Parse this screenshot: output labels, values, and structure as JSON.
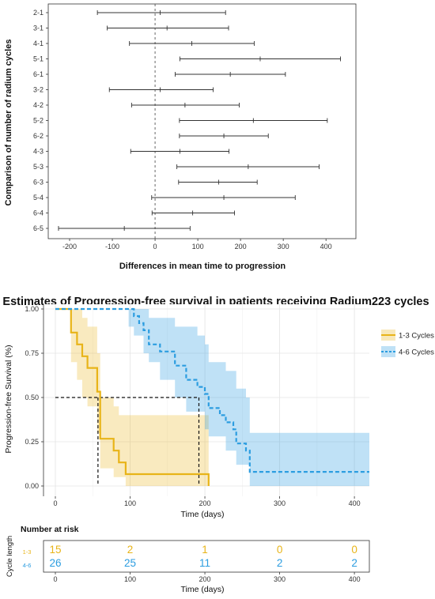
{
  "chart_data": [
    {
      "type": "error-bar",
      "title": "",
      "xlabel": "Differences in mean time to progression",
      "ylabel": "Comparison of number of radium cycles",
      "xlim": [
        -250,
        470
      ],
      "xticks": [
        -200,
        -100,
        0,
        100,
        200,
        300,
        400
      ],
      "reference_line_x": 0,
      "comparisons": [
        {
          "label": "2-1",
          "low": -135,
          "mean": 12,
          "high": 165
        },
        {
          "label": "3-1",
          "low": -112,
          "mean": 28,
          "high": 172
        },
        {
          "label": "4-1",
          "low": -60,
          "mean": 86,
          "high": 232
        },
        {
          "label": "5-1",
          "low": 58,
          "mean": 246,
          "high": 434
        },
        {
          "label": "6-1",
          "low": 47,
          "mean": 176,
          "high": 305
        },
        {
          "label": "3-2",
          "low": -107,
          "mean": 12,
          "high": 136
        },
        {
          "label": "4-2",
          "low": -55,
          "mean": 70,
          "high": 197
        },
        {
          "label": "5-2",
          "low": 57,
          "mean": 230,
          "high": 403
        },
        {
          "label": "6-2",
          "low": 57,
          "mean": 161,
          "high": 265
        },
        {
          "label": "4-3",
          "low": -57,
          "mean": 58,
          "high": 173
        },
        {
          "label": "5-3",
          "low": 51,
          "mean": 218,
          "high": 384
        },
        {
          "label": "6-3",
          "low": 55,
          "mean": 149,
          "high": 239
        },
        {
          "label": "5-4",
          "low": -8,
          "mean": 161,
          "high": 328
        },
        {
          "label": "6-4",
          "low": -7,
          "mean": 88,
          "high": 186
        },
        {
          "label": "6-5",
          "low": -226,
          "mean": -72,
          "high": 82
        }
      ]
    },
    {
      "type": "line",
      "subtype": "kaplan-meier-step",
      "title": "Estimates of Progression-free survival in patients receiving Radium223 cycles",
      "xlabel": "Time (days)",
      "ylabel": "Progression-free Survival (%)",
      "xlim": [
        0,
        420
      ],
      "ylim": [
        0,
        1
      ],
      "xticks": [
        0,
        100,
        200,
        300,
        400
      ],
      "yticks": [
        "0.00",
        "0.25",
        "0.50",
        "0.75",
        "1.00"
      ],
      "legend_position": "right",
      "series": [
        {
          "name": "1-3 Cycles",
          "color": "#E8B418",
          "line_style": "solid",
          "steps": [
            [
              0,
              1.0
            ],
            [
              21,
              0.867
            ],
            [
              29,
              0.8
            ],
            [
              36,
              0.733
            ],
            [
              43,
              0.667
            ],
            [
              56,
              0.533
            ],
            [
              60,
              0.267
            ],
            [
              78,
              0.2
            ],
            [
              85,
              0.133
            ],
            [
              94,
              0.067
            ],
            [
              103,
              0.067
            ],
            [
              205,
              0.0
            ]
          ],
          "ci_upper": [
            [
              0,
              1.0
            ],
            [
              21,
              1.0
            ],
            [
              29,
              1.0
            ],
            [
              36,
              0.95
            ],
            [
              43,
              0.9
            ],
            [
              56,
              0.75
            ],
            [
              60,
              0.5
            ],
            [
              78,
              0.45
            ],
            [
              85,
              0.4
            ],
            [
              103,
              0.4
            ],
            [
              205,
              0.4
            ]
          ],
          "ci_lower": [
            [
              0,
              1.0
            ],
            [
              21,
              0.7
            ],
            [
              29,
              0.6
            ],
            [
              36,
              0.5
            ],
            [
              43,
              0.45
            ],
            [
              56,
              0.3
            ],
            [
              60,
              0.1
            ],
            [
              78,
              0.05
            ],
            [
              94,
              0.0
            ],
            [
              205,
              0.0
            ]
          ],
          "median_x": 57
        },
        {
          "name": "4-6 Cycles",
          "color": "#2C9DE0",
          "line_style": "dashed",
          "steps": [
            [
              0,
              1.0
            ],
            [
              98,
              1.0
            ],
            [
              105,
              0.96
            ],
            [
              112,
              0.92
            ],
            [
              118,
              0.88
            ],
            [
              125,
              0.8
            ],
            [
              140,
              0.76
            ],
            [
              160,
              0.68
            ],
            [
              175,
              0.6
            ],
            [
              190,
              0.56
            ],
            [
              200,
              0.52
            ],
            [
              205,
              0.44
            ],
            [
              220,
              0.4
            ],
            [
              228,
              0.36
            ],
            [
              238,
              0.32
            ],
            [
              242,
              0.24
            ],
            [
              255,
              0.2
            ],
            [
              260,
              0.08
            ],
            [
              420,
              0.08
            ]
          ],
          "ci_upper": [
            [
              0,
              1.0
            ],
            [
              105,
              1.0
            ],
            [
              125,
              0.95
            ],
            [
              160,
              0.9
            ],
            [
              190,
              0.85
            ],
            [
              200,
              0.8
            ],
            [
              205,
              0.7
            ],
            [
              228,
              0.65
            ],
            [
              242,
              0.55
            ],
            [
              255,
              0.5
            ],
            [
              260,
              0.3
            ],
            [
              420,
              0.3
            ]
          ],
          "ci_lower": [
            [
              0,
              1.0
            ],
            [
              98,
              0.9
            ],
            [
              105,
              0.85
            ],
            [
              118,
              0.75
            ],
            [
              125,
              0.7
            ],
            [
              140,
              0.6
            ],
            [
              160,
              0.5
            ],
            [
              175,
              0.42
            ],
            [
              200,
              0.32
            ],
            [
              205,
              0.28
            ],
            [
              228,
              0.2
            ],
            [
              242,
              0.12
            ],
            [
              260,
              0.0
            ],
            [
              420,
              0.0
            ]
          ],
          "median_x": 192
        }
      ],
      "risk_table": {
        "title": "Number at risk",
        "ylabel": "Cycle length",
        "xlabel": "Time (days)",
        "time_points": [
          0,
          100,
          200,
          300,
          400
        ],
        "rows": [
          {
            "label": "1-3",
            "color": "#E8B418",
            "values": [
              15,
              2,
              1,
              0,
              0
            ]
          },
          {
            "label": "4-6",
            "color": "#2C9DE0",
            "values": [
              26,
              25,
              11,
              2,
              2
            ]
          }
        ]
      }
    }
  ]
}
